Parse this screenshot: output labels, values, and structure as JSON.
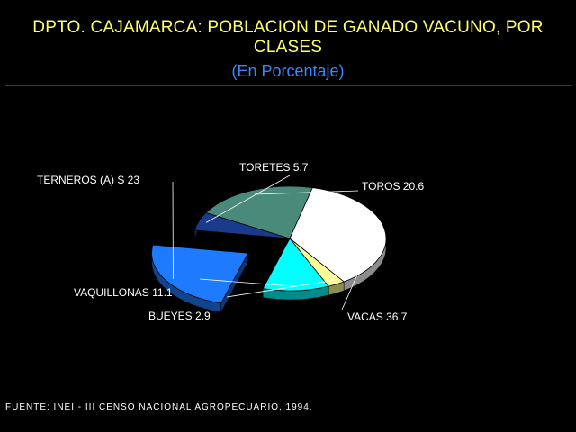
{
  "header": {
    "title": "DPTO. CAJAMARCA: POBLACION DE GANADO VACUNO, POR CLASES",
    "subtitle": "(En Porcentaje)"
  },
  "footer": {
    "source": "FUENTE: INEI - III CENSO NACIONAL AGROPECUARIO, 1994."
  },
  "colors": {
    "background": "#000000",
    "title": "#ffff66",
    "subtitle": "#3a86ff",
    "rule": "#1f2fa8"
  },
  "chart_data": {
    "type": "pie",
    "title": "DPTO. CAJAMARCA: POBLACION DE GANADO VACUNO, POR CLASES",
    "subtitle": "(En Porcentaje)",
    "three_d": true,
    "exploded": [
      "TERNEROS (A) S"
    ],
    "slices": [
      {
        "label": "TORETES",
        "value": 5.7,
        "text": "TORETES  5.7",
        "color": "#1a3a8c"
      },
      {
        "label": "TOROS",
        "value": 20.6,
        "text": "TOROS  20.6",
        "color": "#4a8a7a"
      },
      {
        "label": "VACAS",
        "value": 36.7,
        "text": "VACAS  36.7",
        "color": "#ffffff"
      },
      {
        "label": "BUEYES",
        "value": 2.9,
        "text": "BUEYES  2.9",
        "color": "#ffff99"
      },
      {
        "label": "VAQUILLONAS",
        "value": 11.1,
        "text": "VAQUILLONAS  11.1",
        "color": "#00ffff"
      },
      {
        "label": "TERNEROS (A) S",
        "value": 23,
        "text": "TERNEROS (A) S  23",
        "color": "#1e7bff"
      }
    ]
  }
}
